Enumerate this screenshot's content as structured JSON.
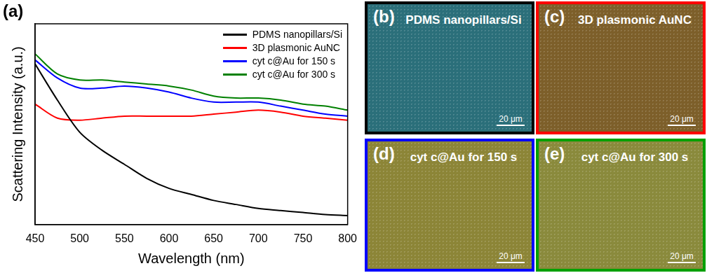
{
  "chart_data": {
    "type": "line",
    "title": "(a)",
    "x_label": "Wavelength (nm)",
    "y_label": "Scattering Intensity (a.u.)",
    "x": [
      450,
      475,
      500,
      525,
      550,
      575,
      600,
      625,
      650,
      675,
      700,
      725,
      750,
      775,
      800
    ],
    "series": [
      {
        "name": "PDMS nanopillars/Si",
        "color": "#000000",
        "values": [
          0.8,
          0.62,
          0.46,
          0.37,
          0.3,
          0.23,
          0.18,
          0.15,
          0.12,
          0.1,
          0.08,
          0.07,
          0.06,
          0.05,
          0.045
        ]
      },
      {
        "name": "3D plasmonic AuNC",
        "color": "#ff0000",
        "values": [
          0.6,
          0.53,
          0.52,
          0.53,
          0.54,
          0.54,
          0.54,
          0.54,
          0.55,
          0.56,
          0.57,
          0.56,
          0.54,
          0.53,
          0.52
        ]
      },
      {
        "name": "cyt c@Au for 150 s",
        "color": "#0000ff",
        "values": [
          0.82,
          0.73,
          0.68,
          0.68,
          0.69,
          0.68,
          0.66,
          0.63,
          0.61,
          0.61,
          0.61,
          0.59,
          0.57,
          0.55,
          0.54
        ]
      },
      {
        "name": "cyt c@Au for 300 s",
        "color": "#008000",
        "values": [
          0.85,
          0.75,
          0.72,
          0.72,
          0.71,
          0.7,
          0.69,
          0.67,
          0.64,
          0.63,
          0.63,
          0.62,
          0.6,
          0.59,
          0.57
        ]
      }
    ],
    "xlim": [
      450,
      800
    ],
    "xticks": [
      450,
      500,
      550,
      600,
      650,
      700,
      750,
      800
    ],
    "ylim": [
      0,
      1
    ],
    "tick_labels": "x",
    "grid": false,
    "legend": "upper right"
  },
  "images": [
    {
      "label": "(b)",
      "title": "PDMS nanopillars/Si",
      "scale_bar": "20 μm",
      "color": "#000000",
      "fill": "#2b6f7a"
    },
    {
      "label": "(c)",
      "title": "3D plasmonic AuNC",
      "scale_bar": "20 μm",
      "color": "#ff0000",
      "fill": "#7d5f2a"
    },
    {
      "label": "(d)",
      "title": "cyt c@Au for 150 s",
      "scale_bar": "20 μm",
      "color": "#0000ff",
      "fill": "#8c8537"
    },
    {
      "label": "(e)",
      "title": "cyt c@Au for 300 s",
      "scale_bar": "20 μm",
      "color": "#00a000",
      "fill": "#8a8a3c"
    }
  ]
}
